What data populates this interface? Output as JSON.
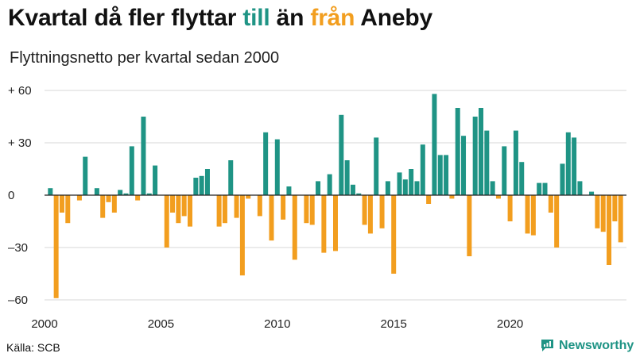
{
  "header": {
    "title_part1": "Kvartal då fler flyttar ",
    "title_pos": "till",
    "title_part2": " än ",
    "title_neg": "från",
    "title_part3": " Aneby",
    "subtitle": "Flyttningsnetto per kvartal sedan 2000"
  },
  "footer": {
    "source": "Källa: SCB",
    "brand": "Newsworthy"
  },
  "colors": {
    "positive": "#1f9485",
    "negative": "#f29e1f",
    "grid": "#d7d7d7",
    "zero": "#222222"
  },
  "chart_data": {
    "type": "bar",
    "title": "Kvartal då fler flyttar till än från Aneby",
    "subtitle": "Flyttningsnetto per kvartal sedan 2000",
    "xlabel": "",
    "ylabel": "",
    "ylim": [
      -60,
      60
    ],
    "x_start": 2000,
    "periods_per_year": 4,
    "y_ticks": [
      60,
      30,
      0,
      -30,
      -60
    ],
    "y_tick_labels": [
      "+ 60",
      "+ 30",
      "0",
      "–30",
      "–60"
    ],
    "x_ticks": [
      2000,
      2005,
      2010,
      2015,
      2020
    ],
    "x_tick_labels": [
      "2000",
      "2005",
      "2010",
      "2015",
      "2020"
    ],
    "values": [
      4,
      -59,
      -10,
      -16,
      0,
      -3,
      22,
      0,
      4,
      -13,
      -4,
      -10,
      3,
      1,
      28,
      -3,
      45,
      1,
      17,
      0,
      -30,
      -10,
      -16,
      -12,
      -18,
      10,
      11,
      15,
      0,
      -18,
      -16,
      20,
      -13,
      -46,
      -2,
      0,
      -12,
      36,
      -26,
      32,
      -14,
      5,
      -37,
      0,
      -16,
      -17,
      8,
      -33,
      12,
      -32,
      46,
      20,
      6,
      1,
      -17,
      -22,
      33,
      -19,
      8,
      -45,
      13,
      9,
      15,
      8,
      29,
      -5,
      58,
      23,
      23,
      -2,
      50,
      34,
      -35,
      45,
      50,
      37,
      8,
      -2,
      28,
      -15,
      37,
      19,
      -22,
      -23,
      7,
      7,
      -10,
      -30,
      18,
      36,
      33,
      8,
      0,
      2,
      -19,
      -21,
      -40,
      -15,
      -27
    ]
  }
}
